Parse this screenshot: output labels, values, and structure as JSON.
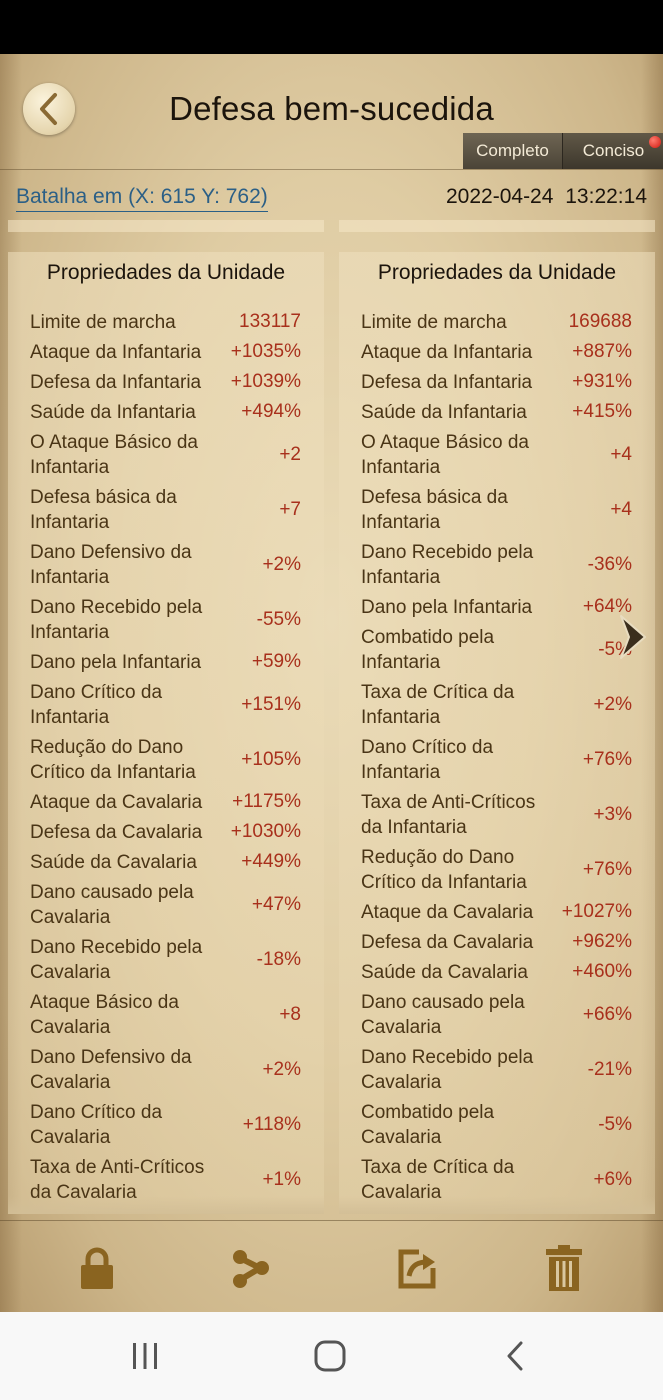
{
  "header": {
    "title": "Defesa bem-sucedida",
    "tabs": {
      "completo": "Completo",
      "conciso": "Conciso"
    }
  },
  "battle": {
    "location": "Batalha em (X: 615 Y: 762)",
    "datetime": "2022-04-24 13:22:14"
  },
  "left_panel": {
    "title": "Propriedades da Unidade",
    "rows": [
      {
        "label": "Limite de marcha",
        "value": "133117"
      },
      {
        "label": "Ataque da Infantaria",
        "value": "+1035%"
      },
      {
        "label": "Defesa da Infantaria",
        "value": "+1039%"
      },
      {
        "label": "Saúde da Infantaria",
        "value": "+494%"
      },
      {
        "label": "O Ataque Básico da Infantaria",
        "value": "+2"
      },
      {
        "label": "Defesa básica da Infantaria",
        "value": "+7"
      },
      {
        "label": "Dano Defensivo da Infantaria",
        "value": "+2%"
      },
      {
        "label": "Dano Recebido pela Infantaria",
        "value": "-55%"
      },
      {
        "label": "Dano pela Infantaria",
        "value": "+59%"
      },
      {
        "label": "Dano Crítico da Infantaria",
        "value": "+151%"
      },
      {
        "label": "Redução do Dano Crítico da Infantaria",
        "value": "+105%"
      },
      {
        "label": "Ataque da Cavalaria",
        "value": "+1175%"
      },
      {
        "label": "Defesa da Cavalaria",
        "value": "+1030%"
      },
      {
        "label": "Saúde da Cavalaria",
        "value": "+449%"
      },
      {
        "label": "Dano causado pela Cavalaria",
        "value": "+47%"
      },
      {
        "label": "Dano Recebido pela Cavalaria",
        "value": "-18%"
      },
      {
        "label": "Ataque Básico da Cavalaria",
        "value": "+8"
      },
      {
        "label": "Dano Defensivo da Cavalaria",
        "value": "+2%"
      },
      {
        "label": "Dano Crítico da Cavalaria",
        "value": "+118%"
      },
      {
        "label": "Taxa de Anti-Críticos da Cavalaria",
        "value": "+1%"
      }
    ]
  },
  "right_panel": {
    "title": "Propriedades da Unidade",
    "rows": [
      {
        "label": "Limite de marcha",
        "value": "169688"
      },
      {
        "label": "Ataque da Infantaria",
        "value": "+887%"
      },
      {
        "label": "Defesa da Infantaria",
        "value": "+931%"
      },
      {
        "label": "Saúde da Infantaria",
        "value": "+415%"
      },
      {
        "label": "O Ataque Básico da Infantaria",
        "value": "+4"
      },
      {
        "label": "Defesa básica da Infantaria",
        "value": "+4"
      },
      {
        "label": "Dano Recebido pela Infantaria",
        "value": "-36%"
      },
      {
        "label": "Dano pela Infantaria",
        "value": "+64%"
      },
      {
        "label": "Combatido pela Infantaria",
        "value": "-5%"
      },
      {
        "label": "Taxa de Crítica da Infantaria",
        "value": "+2%"
      },
      {
        "label": "Dano Crítico da Infantaria",
        "value": "+76%"
      },
      {
        "label": "Taxa de Anti-Críticos da Infantaria",
        "value": "+3%"
      },
      {
        "label": "Redução do Dano Crítico da Infantaria",
        "value": "+76%"
      },
      {
        "label": "Ataque da Cavalaria",
        "value": "+1027%"
      },
      {
        "label": "Defesa da Cavalaria",
        "value": "+962%"
      },
      {
        "label": "Saúde da Cavalaria",
        "value": "+460%"
      },
      {
        "label": "Dano causado pela Cavalaria",
        "value": "+66%"
      },
      {
        "label": "Dano Recebido pela Cavalaria",
        "value": "-21%"
      },
      {
        "label": "Combatido pela Cavalaria",
        "value": "-5%"
      },
      {
        "label": "Taxa de Crítica da Cavalaria",
        "value": "+6%"
      }
    ]
  },
  "toolbar": {
    "icons": [
      "lock-icon",
      "share-icon",
      "export-icon",
      "trash-icon"
    ]
  },
  "navbar": {
    "icons": [
      "recent-apps-icon",
      "home-icon",
      "back-nav-icon"
    ]
  },
  "colors": {
    "value_red": "#a8301c",
    "label_brown": "#4a3516",
    "link_blue": "#2b5f86",
    "icon_brown": "#8a6420"
  }
}
